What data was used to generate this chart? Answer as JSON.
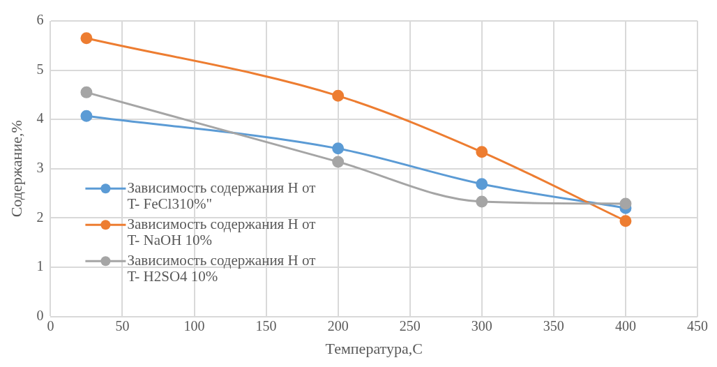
{
  "chart_data": {
    "type": "line",
    "xlabel": "Температура,С",
    "ylabel": "Содержание,%",
    "xlim": [
      0,
      450
    ],
    "xticks": [
      0,
      50,
      100,
      150,
      200,
      250,
      300,
      350,
      400,
      450
    ],
    "ylim": [
      0,
      6
    ],
    "yticks": [
      0,
      1,
      2,
      3,
      4,
      5,
      6
    ],
    "grid": true,
    "legend": "left",
    "marker": "circle",
    "line_style": "solid",
    "series": [
      {
        "name": "Зависимость содержания H от T- FeCl310%\"",
        "color": "#5b9bd5",
        "x": [
          25,
          200,
          300,
          400
        ],
        "values": [
          4.07,
          3.41,
          2.69,
          2.2
        ]
      },
      {
        "name": "Зависимость содержания H от T- NaOH 10%",
        "color": "#ed7d31",
        "x": [
          25,
          200,
          300,
          400
        ],
        "values": [
          5.65,
          4.48,
          3.34,
          1.94
        ]
      },
      {
        "name": "Зависимость содержания H от T- H2SO4 10%",
        "color": "#a5a5a5",
        "x": [
          25,
          200,
          300,
          400
        ],
        "values": [
          4.55,
          3.14,
          2.33,
          2.29
        ]
      }
    ]
  }
}
